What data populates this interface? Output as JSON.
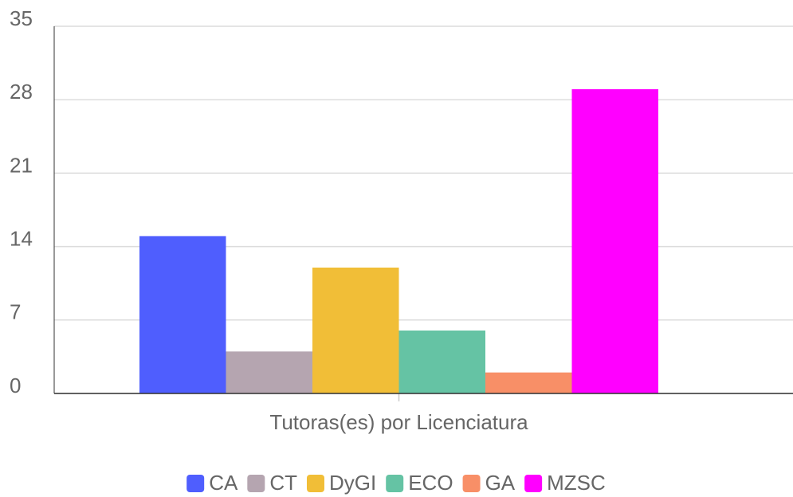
{
  "chart_data": {
    "type": "bar",
    "categories": [
      "Tutoras(es) por Licenciatura"
    ],
    "series": [
      {
        "name": "CA",
        "color": "#4f5efe",
        "values": [
          15
        ]
      },
      {
        "name": "CT",
        "color": "#b5a5b0",
        "values": [
          4
        ]
      },
      {
        "name": "DyGI",
        "color": "#f1be37",
        "values": [
          12
        ]
      },
      {
        "name": "ECO",
        "color": "#65c3a4",
        "values": [
          6
        ]
      },
      {
        "name": "GA",
        "color": "#f88f67",
        "values": [
          2
        ]
      },
      {
        "name": "MZSC",
        "color": "#ff00ff",
        "values": [
          29
        ]
      }
    ],
    "ylim": [
      0,
      35
    ],
    "yticks": [
      0,
      7,
      14,
      21,
      28,
      35
    ],
    "grid": true,
    "legend": "bottom"
  }
}
